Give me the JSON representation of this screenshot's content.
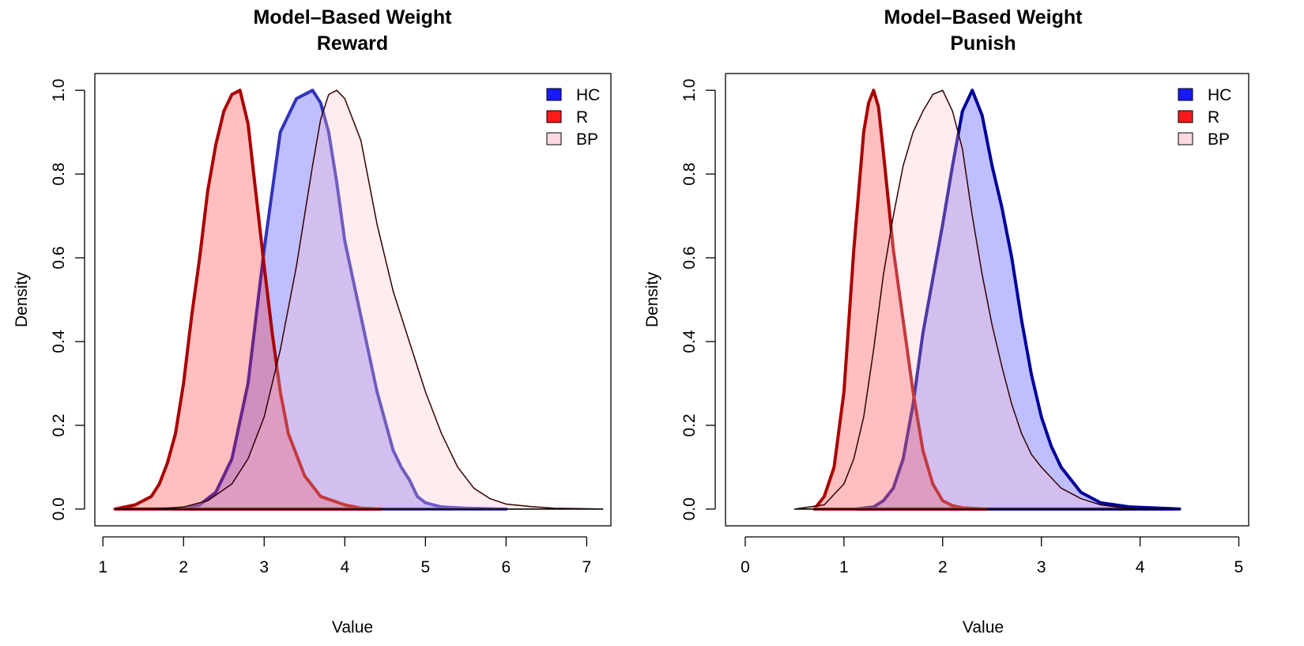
{
  "chart_data": [
    {
      "type": "area",
      "title": "Model–Based Weight",
      "subtitle": "Reward",
      "xlabel": "Value",
      "ylabel": "Density",
      "xlim": [
        0.9,
        7.3
      ],
      "ylim": [
        -0.04,
        1.04
      ],
      "xticks": [
        1,
        2,
        3,
        4,
        5,
        6,
        7
      ],
      "yticks": [
        0.0,
        0.2,
        0.4,
        0.6,
        0.8,
        1.0
      ],
      "xtick_labels": [
        "1",
        "2",
        "3",
        "4",
        "5",
        "6",
        "7"
      ],
      "ytick_labels": [
        "0.0",
        "0.2",
        "0.4",
        "0.6",
        "0.8",
        "1.0"
      ],
      "legend": {
        "position": "top-right",
        "entries": [
          "HC",
          "R",
          "BP"
        ]
      },
      "grid": false,
      "series": [
        {
          "name": "HC",
          "fill": "#0000ff",
          "fill_opacity": 0.25,
          "stroke": "#3333bb",
          "stroke_width": 4,
          "x": [
            1.95,
            2.2,
            2.4,
            2.6,
            2.8,
            3.0,
            3.2,
            3.4,
            3.5,
            3.6,
            3.7,
            3.8,
            3.9,
            4.0,
            4.1,
            4.2,
            4.4,
            4.6,
            4.7,
            4.8,
            4.9,
            5.0,
            5.2,
            5.5,
            6.0
          ],
          "y": [
            0.0,
            0.01,
            0.04,
            0.12,
            0.3,
            0.62,
            0.9,
            0.98,
            0.99,
            1.0,
            0.97,
            0.9,
            0.78,
            0.64,
            0.55,
            0.46,
            0.28,
            0.14,
            0.1,
            0.07,
            0.03,
            0.015,
            0.005,
            0.002,
            0.0
          ]
        },
        {
          "name": "R",
          "fill": "#ff0000",
          "fill_opacity": 0.25,
          "stroke": "#aa0000",
          "stroke_width": 4,
          "x": [
            1.15,
            1.4,
            1.6,
            1.7,
            1.8,
            1.9,
            2.0,
            2.1,
            2.2,
            2.3,
            2.4,
            2.5,
            2.6,
            2.7,
            2.8,
            2.9,
            3.0,
            3.1,
            3.2,
            3.3,
            3.5,
            3.7,
            4.0,
            4.2,
            4.45
          ],
          "y": [
            0.0,
            0.01,
            0.03,
            0.06,
            0.11,
            0.18,
            0.3,
            0.46,
            0.6,
            0.76,
            0.87,
            0.95,
            0.99,
            1.0,
            0.92,
            0.75,
            0.58,
            0.42,
            0.28,
            0.18,
            0.08,
            0.03,
            0.01,
            0.002,
            0.0
          ]
        },
        {
          "name": "BP",
          "fill": "#ffc0cb",
          "fill_opacity": 0.3,
          "stroke": "#330000",
          "stroke_width": 1.5,
          "x": [
            1.65,
            2.0,
            2.3,
            2.6,
            2.8,
            3.0,
            3.2,
            3.4,
            3.6,
            3.7,
            3.8,
            3.9,
            4.0,
            4.2,
            4.4,
            4.6,
            4.8,
            5.0,
            5.2,
            5.4,
            5.6,
            5.8,
            6.0,
            6.3,
            6.6,
            7.2
          ],
          "y": [
            0.0,
            0.005,
            0.02,
            0.06,
            0.12,
            0.22,
            0.38,
            0.58,
            0.82,
            0.93,
            0.99,
            1.0,
            0.98,
            0.88,
            0.68,
            0.52,
            0.4,
            0.28,
            0.18,
            0.1,
            0.05,
            0.025,
            0.012,
            0.006,
            0.002,
            0.0
          ]
        }
      ]
    },
    {
      "type": "area",
      "title": "Model–Based Weight",
      "subtitle": "Punish",
      "xlabel": "Value",
      "ylabel": "Density",
      "xlim": [
        -0.2,
        5.1
      ],
      "ylim": [
        -0.04,
        1.04
      ],
      "xticks": [
        0,
        1,
        2,
        3,
        4,
        5
      ],
      "yticks": [
        0.0,
        0.2,
        0.4,
        0.6,
        0.8,
        1.0
      ],
      "xtick_labels": [
        "0",
        "1",
        "2",
        "3",
        "4",
        "5"
      ],
      "ytick_labels": [
        "0.0",
        "0.2",
        "0.4",
        "0.6",
        "0.8",
        "1.0"
      ],
      "legend": {
        "position": "top-right",
        "entries": [
          "HC",
          "R",
          "BP"
        ]
      },
      "grid": false,
      "series": [
        {
          "name": "HC",
          "fill": "#0000ff",
          "fill_opacity": 0.25,
          "stroke": "#000099",
          "stroke_width": 4,
          "x": [
            1.12,
            1.3,
            1.4,
            1.5,
            1.6,
            1.7,
            1.8,
            1.9,
            2.0,
            2.1,
            2.2,
            2.3,
            2.4,
            2.5,
            2.6,
            2.7,
            2.8,
            2.9,
            3.0,
            3.1,
            3.2,
            3.4,
            3.6,
            3.9,
            4.4
          ],
          "y": [
            0.0,
            0.005,
            0.02,
            0.05,
            0.12,
            0.25,
            0.42,
            0.55,
            0.68,
            0.82,
            0.95,
            1.0,
            0.94,
            0.82,
            0.72,
            0.6,
            0.45,
            0.32,
            0.22,
            0.15,
            0.1,
            0.04,
            0.015,
            0.005,
            0.0
          ]
        },
        {
          "name": "R",
          "fill": "#ff0000",
          "fill_opacity": 0.25,
          "stroke": "#aa0000",
          "stroke_width": 4,
          "x": [
            0.7,
            0.8,
            0.9,
            1.0,
            1.1,
            1.2,
            1.25,
            1.3,
            1.35,
            1.4,
            1.5,
            1.6,
            1.7,
            1.8,
            1.9,
            2.0,
            2.1,
            2.2,
            2.45
          ],
          "y": [
            0.0,
            0.03,
            0.1,
            0.28,
            0.62,
            0.9,
            0.97,
            1.0,
            0.96,
            0.85,
            0.62,
            0.45,
            0.28,
            0.14,
            0.06,
            0.02,
            0.008,
            0.003,
            0.0
          ]
        },
        {
          "name": "BP",
          "fill": "#ffc0cb",
          "fill_opacity": 0.3,
          "stroke": "#330000",
          "stroke_width": 1.5,
          "x": [
            0.5,
            0.8,
            1.0,
            1.1,
            1.2,
            1.3,
            1.4,
            1.5,
            1.6,
            1.7,
            1.8,
            1.9,
            2.0,
            2.1,
            2.2,
            2.3,
            2.4,
            2.5,
            2.6,
            2.7,
            2.8,
            2.9,
            3.0,
            3.2,
            3.4,
            3.6,
            3.8,
            4.0
          ],
          "y": [
            0.0,
            0.01,
            0.06,
            0.12,
            0.22,
            0.38,
            0.56,
            0.7,
            0.82,
            0.9,
            0.95,
            0.99,
            1.0,
            0.95,
            0.86,
            0.7,
            0.56,
            0.44,
            0.34,
            0.25,
            0.18,
            0.13,
            0.1,
            0.05,
            0.025,
            0.01,
            0.004,
            0.0
          ]
        }
      ]
    }
  ]
}
